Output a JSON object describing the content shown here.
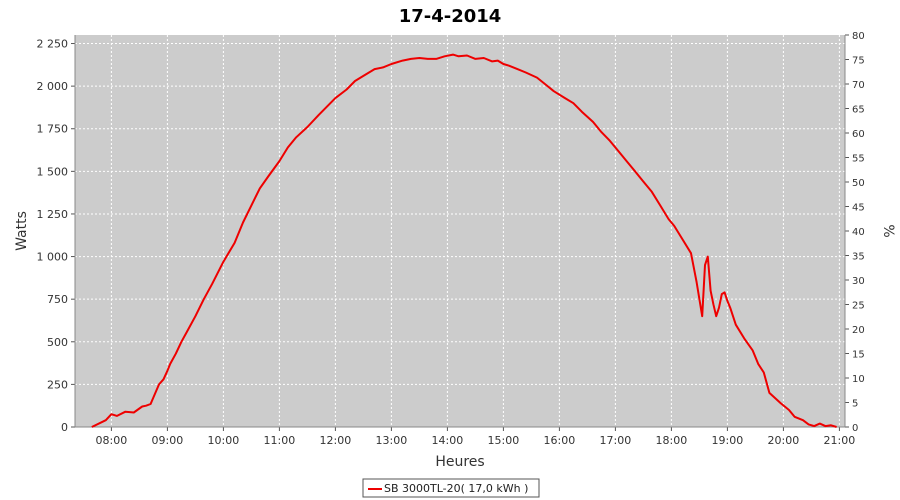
{
  "chart_data": {
    "type": "line",
    "title": "17-4-2014",
    "xlabel": "Heures",
    "ylabel": "Watts",
    "y2label": "%",
    "x_ticks": [
      "08:00",
      "09:00",
      "10:00",
      "11:00",
      "12:00",
      "13:00",
      "14:00",
      "15:00",
      "16:00",
      "17:00",
      "18:00",
      "19:00",
      "20:00",
      "21:00"
    ],
    "y_ticks": [
      "0",
      "250",
      "500",
      "750",
      "1 000",
      "1 250",
      "1 500",
      "1 750",
      "2 000",
      "2 250"
    ],
    "y2_ticks": [
      "0",
      "5",
      "10",
      "15",
      "20",
      "25",
      "30",
      "35",
      "40",
      "45",
      "50",
      "55",
      "60",
      "65",
      "70",
      "75",
      "80"
    ],
    "xlim_hours": [
      7.35,
      21.1
    ],
    "ylim": [
      0,
      2300
    ],
    "y2lim": [
      0,
      80
    ],
    "grid": true,
    "legend_position": "bottom",
    "colors": {
      "plot_bg": "#cccccc",
      "line": "#ee0000",
      "grid": "#ffffff"
    },
    "series": [
      {
        "name": "SB 3000TL-20( 17,0 kWh )",
        "x": [
          7.65,
          7.9,
          8.0,
          8.1,
          8.25,
          8.4,
          8.55,
          8.62,
          8.7,
          8.85,
          8.93,
          9.0,
          9.05,
          9.15,
          9.25,
          9.35,
          9.5,
          9.65,
          9.8,
          10.0,
          10.2,
          10.35,
          10.5,
          10.65,
          10.8,
          11.0,
          11.15,
          11.3,
          11.5,
          11.7,
          11.85,
          12.0,
          12.2,
          12.35,
          12.5,
          12.7,
          12.85,
          13.0,
          13.2,
          13.35,
          13.5,
          13.65,
          13.8,
          13.95,
          14.1,
          14.2,
          14.35,
          14.5,
          14.65,
          14.8,
          14.9,
          15.0,
          15.1,
          15.25,
          15.4,
          15.6,
          15.75,
          15.9,
          16.1,
          16.25,
          16.4,
          16.6,
          16.75,
          16.9,
          17.05,
          17.2,
          17.35,
          17.5,
          17.65,
          17.8,
          17.95,
          18.05,
          18.2,
          18.35,
          18.45,
          18.55,
          18.6,
          18.65,
          18.7,
          18.75,
          18.8,
          18.85,
          18.9,
          18.95,
          19.0,
          19.05,
          19.15,
          19.3,
          19.45,
          19.55,
          19.65,
          19.75,
          19.85,
          19.95,
          20.1,
          20.2,
          20.35,
          20.45,
          20.55,
          20.65,
          20.75,
          20.85,
          20.95
        ],
        "values": [
          0,
          40,
          75,
          65,
          90,
          85,
          120,
          125,
          135,
          250,
          280,
          330,
          370,
          430,
          500,
          560,
          650,
          750,
          840,
          970,
          1080,
          1200,
          1300,
          1400,
          1470,
          1560,
          1640,
          1700,
          1760,
          1830,
          1880,
          1930,
          1980,
          2030,
          2060,
          2100,
          2110,
          2130,
          2150,
          2160,
          2165,
          2160,
          2160,
          2175,
          2185,
          2175,
          2180,
          2160,
          2165,
          2145,
          2150,
          2130,
          2120,
          2100,
          2080,
          2050,
          2010,
          1970,
          1930,
          1900,
          1850,
          1790,
          1730,
          1680,
          1620,
          1560,
          1500,
          1440,
          1380,
          1300,
          1220,
          1180,
          1100,
          1020,
          850,
          650,
          950,
          1000,
          800,
          720,
          650,
          700,
          780,
          790,
          740,
          700,
          600,
          520,
          450,
          370,
          320,
          200,
          170,
          140,
          100,
          60,
          40,
          15,
          5,
          20,
          5,
          10,
          0
        ]
      }
    ]
  }
}
